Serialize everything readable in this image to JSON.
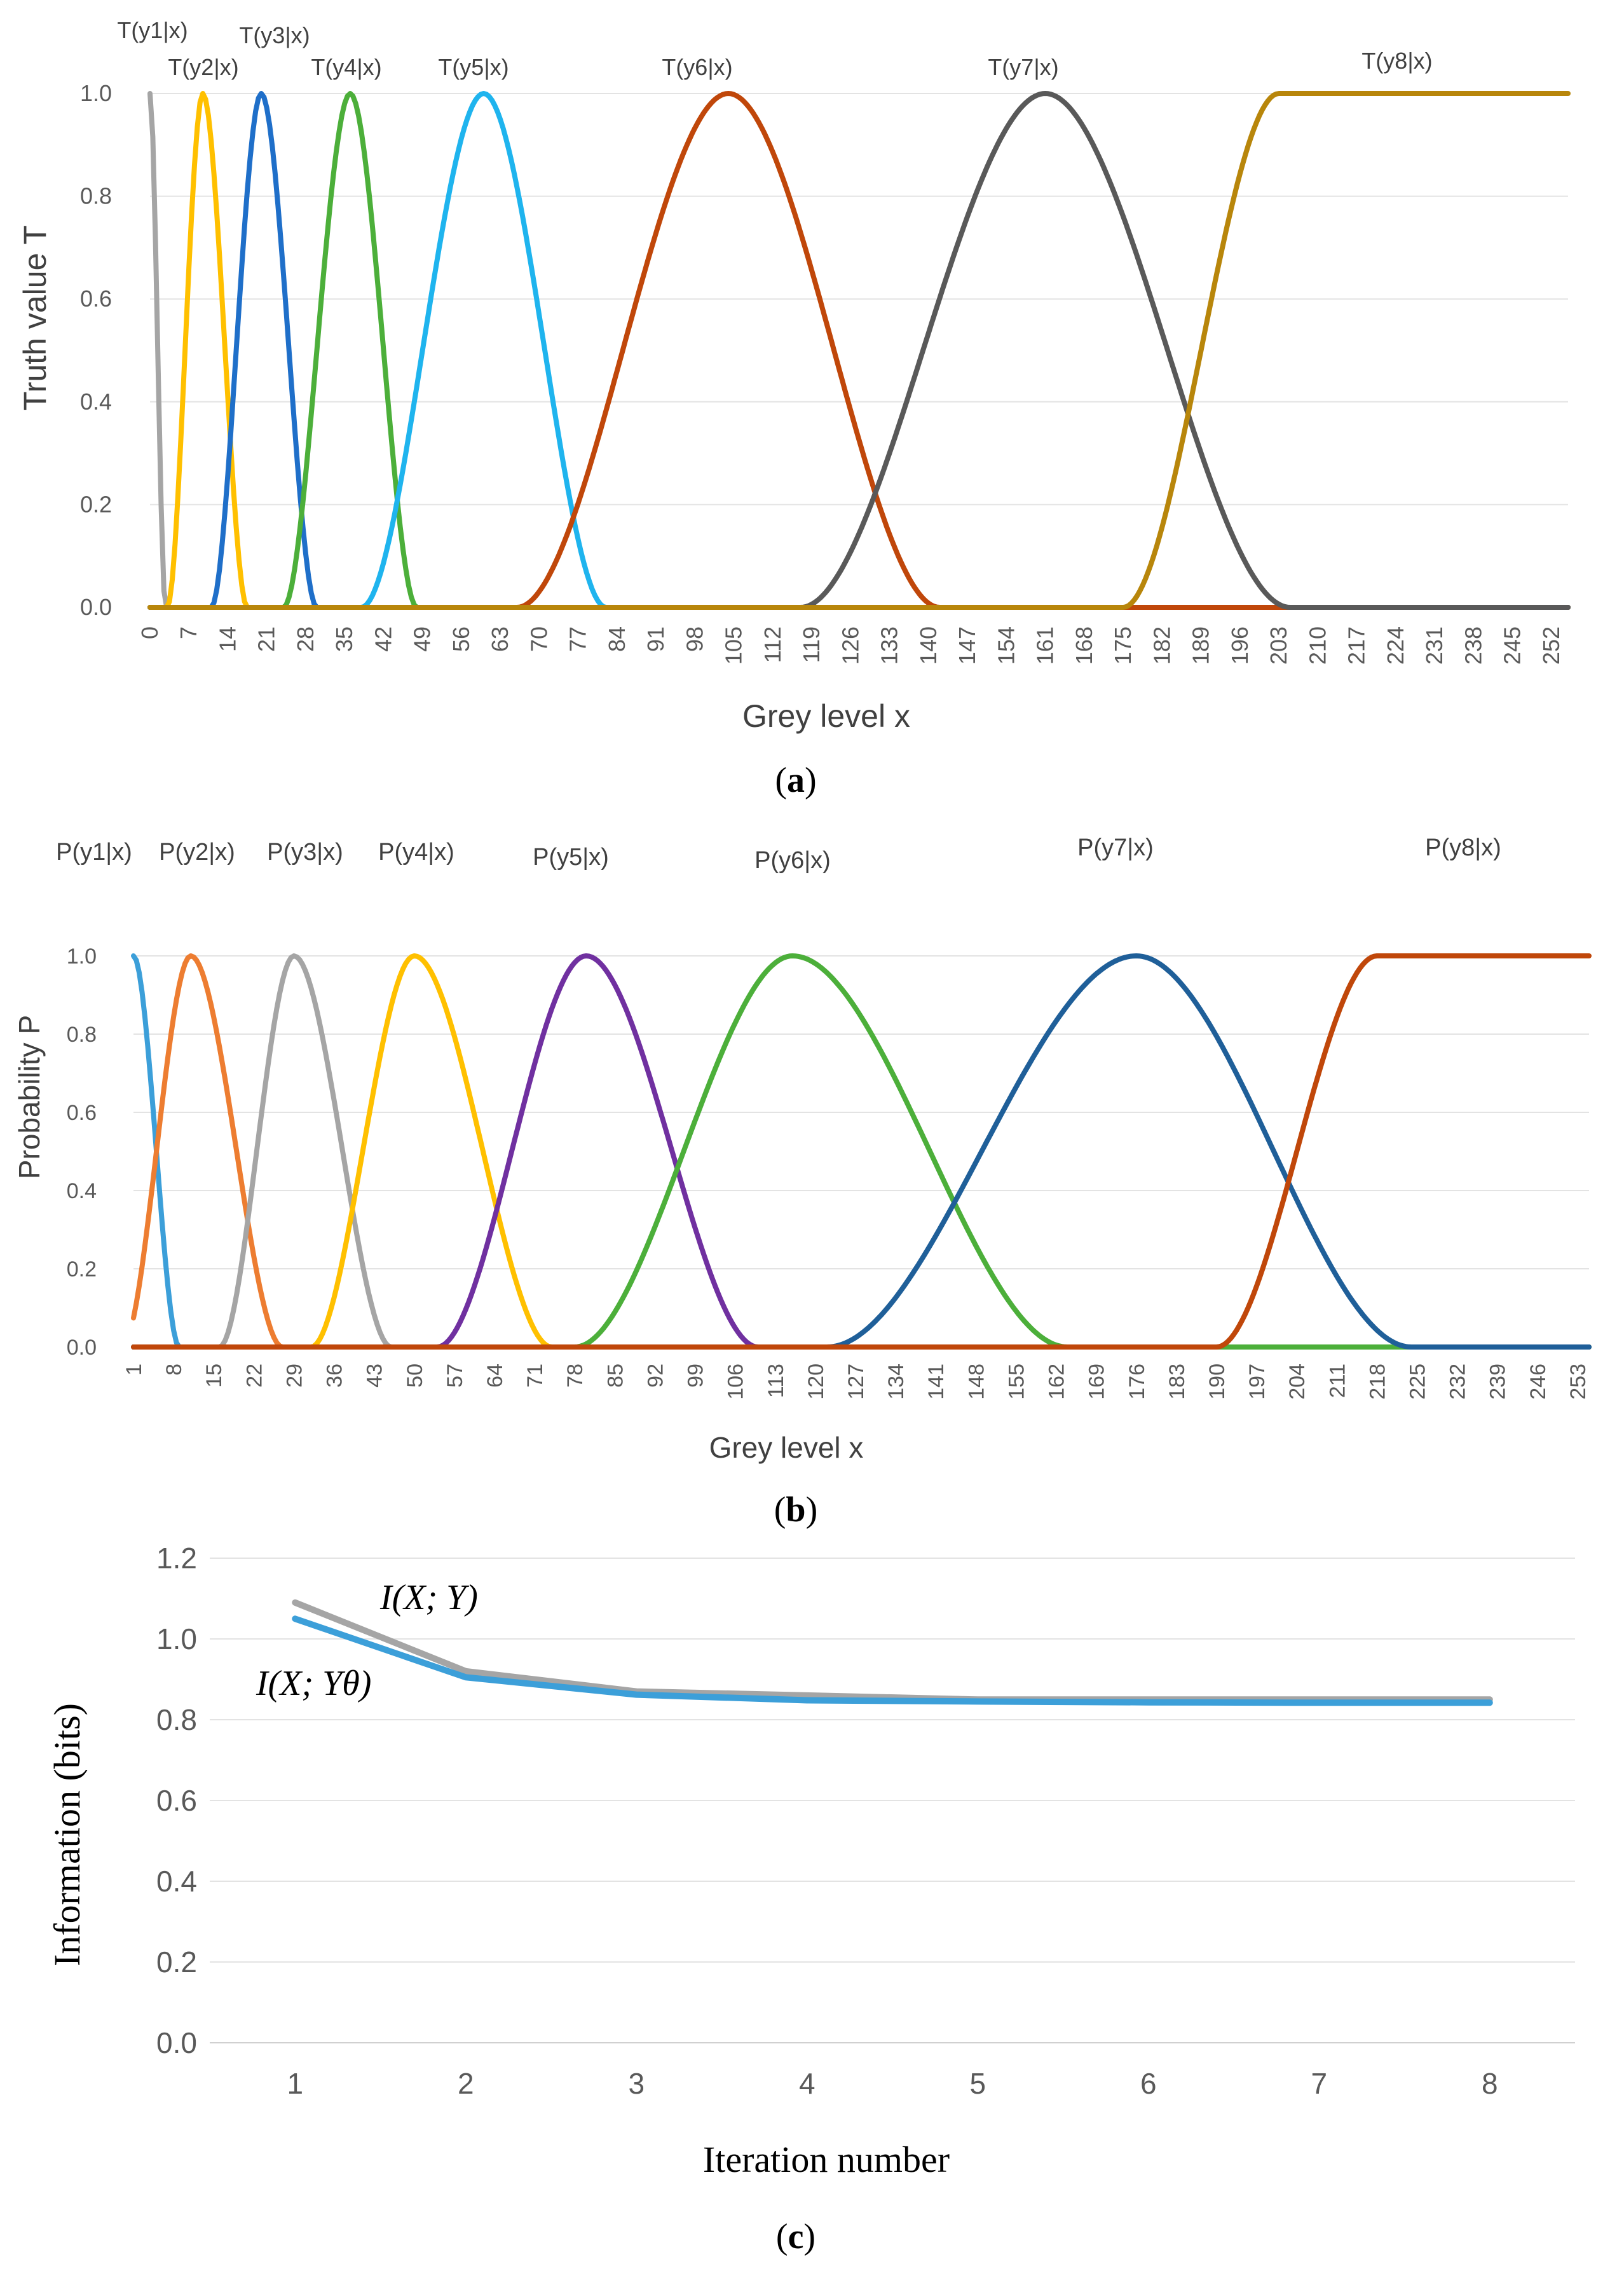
{
  "chart_data": [
    {
      "id": "a",
      "type": "line",
      "caption": "(a)",
      "caption_letter": "a",
      "xlabel": "Grey level x",
      "ylabel": "Truth value T",
      "x_range": [
        0,
        255
      ],
      "ylim": [
        0,
        1
      ],
      "y_ticks": [
        "0.0",
        "0.2",
        "0.4",
        "0.6",
        "0.8",
        "1.0"
      ],
      "x_ticks": [
        0,
        7,
        14,
        21,
        28,
        35,
        42,
        49,
        56,
        63,
        70,
        77,
        84,
        91,
        98,
        105,
        112,
        119,
        126,
        133,
        140,
        147,
        154,
        161,
        168,
        175,
        182,
        189,
        196,
        203,
        210,
        217,
        224,
        231,
        238,
        245,
        252
      ],
      "grid": true,
      "series": [
        {
          "name": "T(y1|x)",
          "color": "#A5A5A5",
          "kind": "bump",
          "peak": 0,
          "left_width": 0,
          "right_width": 1.4
        },
        {
          "name": "T(y2|x)",
          "color": "#FFC000",
          "kind": "bump",
          "peak": 9.5,
          "left_width": 3.2,
          "right_width": 4.0
        },
        {
          "name": "T(y3|x)",
          "color": "#1F6FC9",
          "kind": "bump",
          "peak": 20,
          "left_width": 4.5,
          "right_width": 5.0
        },
        {
          "name": "T(y4|x)",
          "color": "#4CAF3A",
          "kind": "bump",
          "peak": 36,
          "left_width": 6.0,
          "right_width": 6.0
        },
        {
          "name": "T(y5|x)",
          "color": "#1FB4EE",
          "kind": "bump",
          "peak": 60,
          "left_width": 11.0,
          "right_width": 11.0
        },
        {
          "name": "T(y6|x)",
          "color": "#C0470A",
          "kind": "bump",
          "peak": 104,
          "left_width": 19.0,
          "right_width": 19.0
        },
        {
          "name": "T(y7|x)",
          "color": "#595959",
          "kind": "bump",
          "peak": 161,
          "left_width": 22.0,
          "right_width": 22.0
        },
        {
          "name": "T(y8|x)",
          "color": "#B8860B",
          "kind": "rise",
          "center": 189,
          "width": 14.0
        }
      ]
    },
    {
      "id": "b",
      "type": "line",
      "caption": "(b)",
      "caption_letter": "b",
      "xlabel": "Grey level x",
      "ylabel": "Probability P",
      "x_range": [
        1,
        255
      ],
      "ylim": [
        0,
        1.2
      ],
      "y_ticks": [
        "0.0",
        "0.2",
        "0.4",
        "0.6",
        "0.8",
        "1.0"
      ],
      "x_ticks": [
        1,
        8,
        15,
        22,
        29,
        36,
        43,
        50,
        57,
        64,
        71,
        78,
        85,
        92,
        99,
        106,
        113,
        120,
        127,
        134,
        141,
        148,
        155,
        162,
        169,
        176,
        183,
        190,
        197,
        204,
        211,
        218,
        225,
        232,
        239,
        246,
        253
      ],
      "grid": true,
      "series": [
        {
          "name": "P(y1|x)",
          "color": "#3C9FD9",
          "kind": "bump",
          "peak": 1,
          "left_width": 0,
          "right_width": 4.0
        },
        {
          "name": "P(y2|x)",
          "color": "#ED7D31",
          "kind": "bump",
          "peak": 11,
          "left_width": 6.0,
          "right_width": 8.0
        },
        {
          "name": "P(y3|x)",
          "color": "#A5A5A5",
          "kind": "bump",
          "peak": 29,
          "left_width": 6.5,
          "right_width": 8.5
        },
        {
          "name": "P(y4|x)",
          "color": "#FFC000",
          "kind": "bump",
          "peak": 50,
          "left_width": 9.0,
          "right_width": 12.0
        },
        {
          "name": "P(y5|x)",
          "color": "#7030A0",
          "kind": "bump",
          "peak": 80,
          "left_width": 13.0,
          "right_width": 15.0
        },
        {
          "name": "P(y6|x)",
          "color": "#4CAF3A",
          "kind": "bump",
          "peak": 116,
          "left_width": 19.0,
          "right_width": 24.0
        },
        {
          "name": "P(y7|x)",
          "color": "#1F5F99",
          "kind": "bump",
          "peak": 176,
          "left_width": 27.0,
          "right_width": 24.0
        },
        {
          "name": "P(y8|x)",
          "color": "#C0470A",
          "kind": "rise",
          "center": 204,
          "width": 14.0
        }
      ]
    },
    {
      "id": "c",
      "type": "line",
      "caption": "(c)",
      "caption_letter": "c",
      "xlabel": "Iteration number",
      "ylabel": "Information (bits)",
      "x": [
        1,
        2,
        3,
        4,
        5,
        6,
        7,
        8
      ],
      "ylim": [
        0,
        1.2
      ],
      "y_ticks": [
        "0.0",
        "0.2",
        "0.4",
        "0.6",
        "0.8",
        "1.0",
        "1.2"
      ],
      "grid": true,
      "series": [
        {
          "name": "I(X; Y)",
          "color": "#A5A5A5",
          "values": [
            1.09,
            0.92,
            0.87,
            0.86,
            0.85,
            0.85,
            0.85,
            0.85
          ]
        },
        {
          "name": "I(X; Yθ)",
          "color": "#3C9FD9",
          "values": [
            1.05,
            0.905,
            0.862,
            0.848,
            0.845,
            0.843,
            0.842,
            0.842
          ]
        }
      ]
    }
  ]
}
